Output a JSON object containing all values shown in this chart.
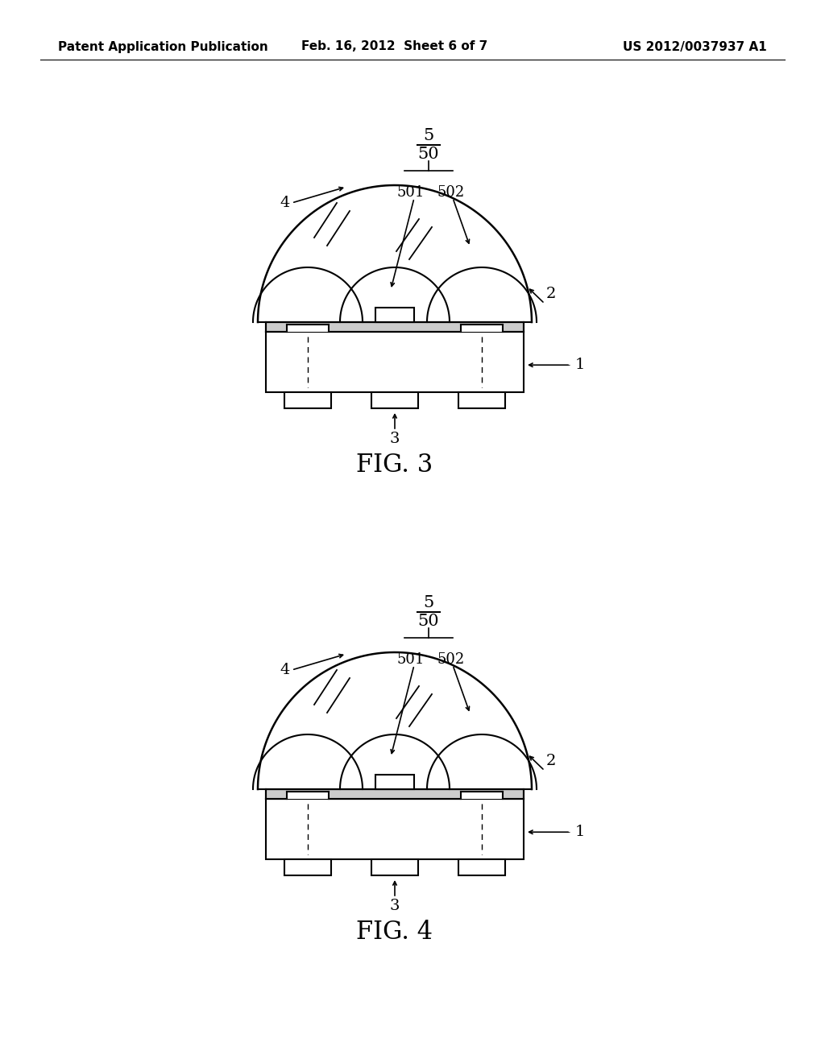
{
  "bg_color": "#ffffff",
  "line_color": "#000000",
  "header_left": "Patent Application Publication",
  "header_mid": "Feb. 16, 2012  Sheet 6 of 7",
  "header_right": "US 2012/0037937 A1",
  "fig3_label": "FIG. 3",
  "fig4_label": "FIG. 4",
  "label_1": "1",
  "label_2": "2",
  "label_3": "3",
  "label_4": "4",
  "label_5": "5",
  "label_50": "50",
  "label_501": "501",
  "label_502": "502"
}
